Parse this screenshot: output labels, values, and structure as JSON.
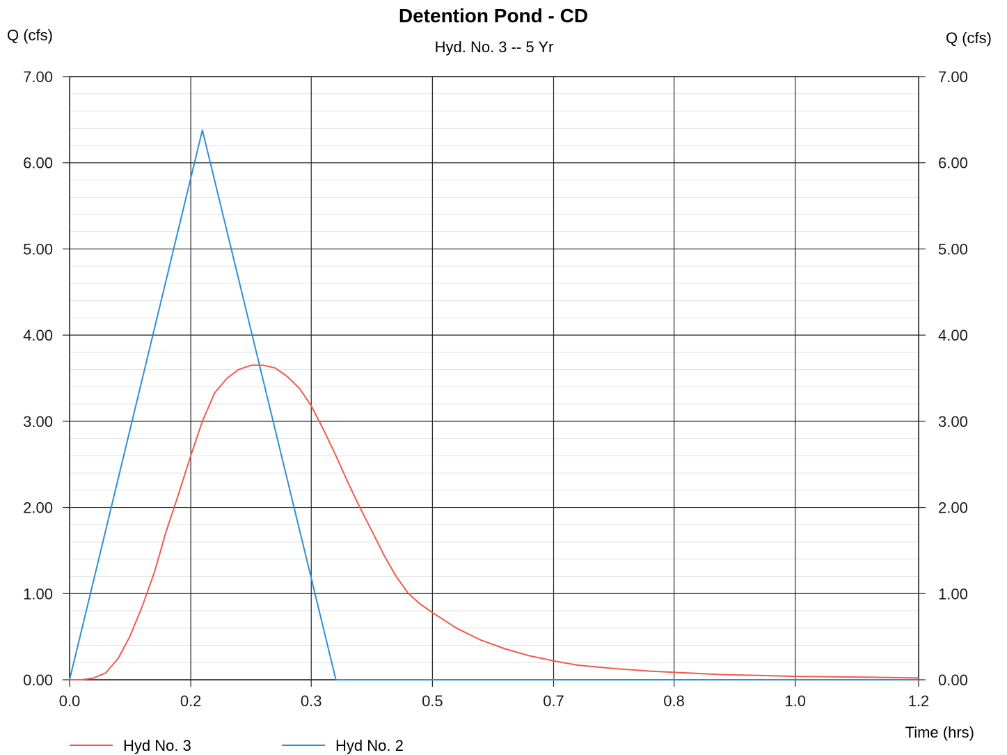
{
  "chart_data": {
    "type": "line",
    "title": "Detention Pond - CD",
    "subtitle": "Hyd. No. 3 -- 5 Yr",
    "ylabel_left": "Q (cfs)",
    "ylabel_right": "Q (cfs)",
    "xlabel": "Time (hrs)",
    "xlim": [
      0,
      1.17
    ],
    "ylim": [
      0,
      7
    ],
    "x_tick_values": [
      0,
      0.167,
      0.333,
      0.5,
      0.667,
      0.833,
      1.0,
      1.17
    ],
    "x_tick_labels": [
      "0.0",
      "0.2",
      "0.3",
      "0.5",
      "0.7",
      "0.8",
      "1.0",
      "1.2"
    ],
    "y_tick_values": [
      0,
      1,
      2,
      3,
      4,
      5,
      6,
      7
    ],
    "y_tick_labels": [
      "0.00",
      "1.00",
      "2.00",
      "3.00",
      "4.00",
      "5.00",
      "6.00",
      "7.00"
    ],
    "grid": true,
    "legend_position": "bottom-left",
    "series": [
      {
        "name": "Hyd No. 3",
        "color": "#f05a4a",
        "x": [
          0.0,
          0.017,
          0.033,
          0.05,
          0.067,
          0.083,
          0.1,
          0.117,
          0.133,
          0.15,
          0.167,
          0.183,
          0.2,
          0.217,
          0.233,
          0.25,
          0.267,
          0.283,
          0.3,
          0.317,
          0.333,
          0.35,
          0.367,
          0.383,
          0.4,
          0.417,
          0.433,
          0.45,
          0.467,
          0.483,
          0.5,
          0.533,
          0.567,
          0.6,
          0.633,
          0.667,
          0.7,
          0.75,
          0.8,
          0.85,
          0.9,
          0.95,
          1.0,
          1.05,
          1.1,
          1.17
        ],
        "y": [
          0.0,
          0.0,
          0.02,
          0.08,
          0.25,
          0.5,
          0.85,
          1.25,
          1.72,
          2.15,
          2.6,
          3.0,
          3.33,
          3.5,
          3.6,
          3.65,
          3.65,
          3.62,
          3.52,
          3.38,
          3.18,
          2.9,
          2.6,
          2.3,
          2.0,
          1.72,
          1.45,
          1.2,
          1.0,
          0.88,
          0.78,
          0.6,
          0.46,
          0.36,
          0.28,
          0.22,
          0.17,
          0.13,
          0.1,
          0.08,
          0.06,
          0.05,
          0.04,
          0.035,
          0.03,
          0.02
        ]
      },
      {
        "name": "Hyd No. 2",
        "color": "#2e8fd6",
        "x": [
          0.0,
          0.183,
          0.367,
          1.17
        ],
        "y": [
          0.0,
          6.38,
          0.0,
          0.0
        ]
      }
    ]
  }
}
